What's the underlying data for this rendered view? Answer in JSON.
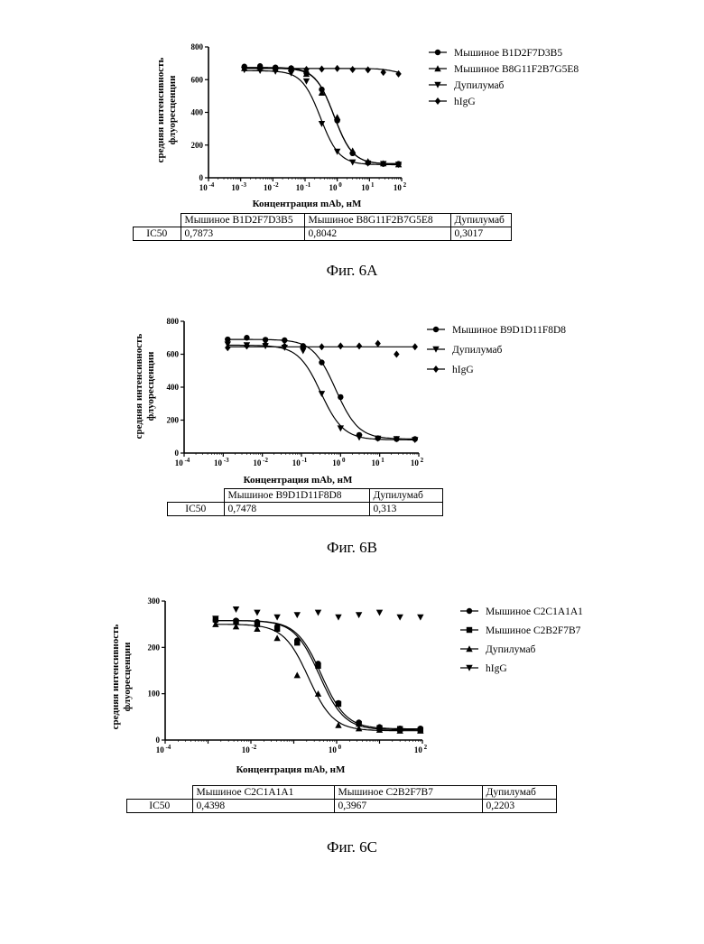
{
  "figures": [
    {
      "id": "6A",
      "caption": "Фиг. 6А",
      "ylabel_line1": "средняя интенсивность",
      "ylabel_line2": "флуоресценции",
      "xlabel": "Концентрация mAb, нМ",
      "ic50_table": {
        "row_label": "IC50",
        "columns": [
          "Мышиное B1D2F7D3B5",
          "Мышиное B8G11F2B7G5E8",
          "Дупилумаб"
        ],
        "values": [
          "0,7873",
          "0,8042",
          "0,3017"
        ]
      }
    },
    {
      "id": "6B",
      "caption": "Фиг. 6B",
      "ylabel_line1": "средняя интенсивность",
      "ylabel_line2": "флуоресценции",
      "xlabel": "Концентрация mAb, нМ",
      "ic50_table": {
        "row_label": "IC50",
        "columns": [
          "Мышиное B9D1D11F8D8",
          "Дупилумаб"
        ],
        "values": [
          "0,7478",
          "0,313"
        ]
      }
    },
    {
      "id": "6C",
      "caption": "Фиг. 6С",
      "ylabel_line1": "средняя интенсивность",
      "ylabel_line2": "флуоресценции",
      "xlabel": "Концентрация mAb, нМ",
      "ic50_table": {
        "row_label": "IC50",
        "columns": [
          "Мышиное C2C1A1A1",
          "Мышиное C2B2F7B7",
          "Дупилумаб"
        ],
        "values": [
          "0,4398",
          "0,3967",
          "0,2203"
        ]
      }
    }
  ],
  "chart_data": [
    {
      "type": "scatter",
      "title": "",
      "xlabel": "Концентрация mAb, нМ",
      "ylabel": "средняя интенсивность флуоресценции",
      "x_scale": "log",
      "xlim": [
        0.0001,
        100
      ],
      "ylim": [
        0,
        800
      ],
      "yticks": [
        0,
        200,
        400,
        600,
        800
      ],
      "x_ticks": [
        {
          "mant": "10",
          "exp": "-4",
          "value": 0.0001
        },
        {
          "mant": "10",
          "exp": "-3",
          "value": 0.001
        },
        {
          "mant": "10",
          "exp": "-2",
          "value": 0.01
        },
        {
          "mant": "10",
          "exp": "-1",
          "value": 0.1
        },
        {
          "mant": "10",
          "exp": "0",
          "value": 1
        },
        {
          "mant": "10",
          "exp": "1",
          "value": 10
        },
        {
          "mant": "10",
          "exp": "2",
          "value": 100
        }
      ],
      "legend_position": "right",
      "series": [
        {
          "name": "Мышиное B1D2F7D3B5",
          "marker": "circle",
          "x": [
            0.0013,
            0.004,
            0.012,
            0.037,
            0.11,
            0.33,
            1.0,
            3.0,
            9.0,
            27,
            80
          ],
          "y": [
            680,
            683,
            675,
            670,
            640,
            540,
            350,
            150,
            92,
            85,
            85
          ],
          "fit": {
            "top": 675,
            "bottom": 85,
            "ec50": 0.7873,
            "hill": 1.5
          }
        },
        {
          "name": "Мышиное B8G11F2B7G5E8",
          "marker": "triangle-up",
          "x": [
            0.0013,
            0.004,
            0.012,
            0.037,
            0.11,
            0.33,
            1.0,
            3.0,
            9.0,
            27,
            80
          ],
          "y": [
            670,
            678,
            665,
            668,
            635,
            520,
            370,
            165,
            100,
            88,
            82
          ],
          "fit": {
            "top": 670,
            "bottom": 85,
            "ec50": 0.8042,
            "hill": 1.5
          }
        },
        {
          "name": "Дупилумаб",
          "marker": "triangle-down",
          "x": [
            0.0013,
            0.004,
            0.012,
            0.037,
            0.11,
            0.33,
            1.0,
            3.0,
            9.0,
            27,
            80
          ],
          "y": [
            660,
            655,
            650,
            640,
            590,
            330,
            160,
            95,
            88,
            85,
            80
          ],
          "fit": {
            "top": 655,
            "bottom": 80,
            "ec50": 0.3017,
            "hill": 1.5
          }
        },
        {
          "name": "hIgG",
          "marker": "diamond",
          "x": [
            0.0013,
            0.004,
            0.012,
            0.037,
            0.11,
            0.33,
            1.0,
            3.0,
            9.0,
            27,
            80
          ],
          "y": [
            672,
            668,
            665,
            668,
            662,
            665,
            668,
            662,
            660,
            645,
            635
          ],
          "fit": {
            "top": 668,
            "bottom": 632,
            "ec50": 60,
            "hill": 2
          }
        }
      ]
    },
    {
      "type": "scatter",
      "title": "",
      "xlabel": "Концентрация mAb, нМ",
      "ylabel": "средняя интенсивность флуоресценции",
      "x_scale": "log",
      "xlim": [
        0.0001,
        100
      ],
      "ylim": [
        0,
        800
      ],
      "yticks": [
        0,
        200,
        400,
        600,
        800
      ],
      "x_ticks": [
        {
          "mant": "10",
          "exp": "-4",
          "value": 0.0001
        },
        {
          "mant": "10",
          "exp": "-3",
          "value": 0.001
        },
        {
          "mant": "10",
          "exp": "-2",
          "value": 0.01
        },
        {
          "mant": "10",
          "exp": "-1",
          "value": 0.1
        },
        {
          "mant": "10",
          "exp": "0",
          "value": 1
        },
        {
          "mant": "10",
          "exp": "1",
          "value": 10
        },
        {
          "mant": "10",
          "exp": "2",
          "value": 100
        }
      ],
      "legend_position": "right",
      "series": [
        {
          "name": "Мышиное B9D1D11F8D8",
          "marker": "circle",
          "x": [
            0.0013,
            0.004,
            0.012,
            0.037,
            0.11,
            0.33,
            1.0,
            3.0,
            9.0,
            27,
            80
          ],
          "y": [
            690,
            700,
            688,
            685,
            650,
            550,
            340,
            110,
            90,
            85,
            85
          ],
          "fit": {
            "top": 690,
            "bottom": 85,
            "ec50": 0.7478,
            "hill": 1.5
          }
        },
        {
          "name": "Дупилумаб",
          "marker": "triangle-down",
          "x": [
            0.0013,
            0.004,
            0.012,
            0.037,
            0.11,
            0.33,
            1.0,
            3.0,
            9.0,
            27,
            80
          ],
          "y": [
            660,
            655,
            650,
            640,
            620,
            360,
            150,
            95,
            88,
            85,
            80
          ],
          "fit": {
            "top": 655,
            "bottom": 80,
            "ec50": 0.313,
            "hill": 1.5
          }
        },
        {
          "name": "hIgG",
          "marker": "diamond",
          "x": [
            0.0013,
            0.004,
            0.012,
            0.037,
            0.11,
            0.33,
            1.0,
            3.0,
            9.0,
            27,
            80
          ],
          "y": [
            640,
            650,
            660,
            650,
            640,
            645,
            650,
            650,
            665,
            600,
            645
          ],
          "fit": {
            "top": 645,
            "bottom": 645,
            "ec50": 1,
            "hill": 1
          }
        }
      ]
    },
    {
      "type": "scatter",
      "title": "",
      "xlabel": "Концентрация mAb, нМ",
      "ylabel": "средняя интенсивность флуоресценции",
      "x_scale": "log",
      "xlim": [
        0.0001,
        100
      ],
      "ylim": [
        0,
        300
      ],
      "yticks": [
        0,
        100,
        200,
        300
      ],
      "x_ticks": [
        {
          "mant": "10",
          "exp": "-4",
          "value": 0.0001
        },
        {
          "mant": "10",
          "exp": "-2",
          "value": 0.01
        },
        {
          "mant": "10",
          "exp": "0",
          "value": 1
        },
        {
          "mant": "10",
          "exp": "2",
          "value": 100
        }
      ],
      "legend_position": "right",
      "series": [
        {
          "name": "Мышиное C2C1A1A1",
          "marker": "circle",
          "x": [
            0.0015,
            0.0045,
            0.014,
            0.041,
            0.12,
            0.37,
            1.1,
            3.3,
            10,
            30,
            90
          ],
          "y": [
            258,
            258,
            255,
            245,
            215,
            165,
            80,
            38,
            28,
            25,
            25
          ],
          "fit": {
            "top": 258,
            "bottom": 24,
            "ec50": 0.4398,
            "hill": 1.5
          }
        },
        {
          "name": "Мышиное C2B2F7B7",
          "marker": "square",
          "x": [
            0.0015,
            0.0045,
            0.014,
            0.041,
            0.12,
            0.37,
            1.1,
            3.3,
            10,
            30,
            90
          ],
          "y": [
            260,
            255,
            250,
            240,
            210,
            160,
            78,
            35,
            26,
            24,
            22
          ],
          "fit": {
            "top": 258,
            "bottom": 22,
            "ec50": 0.3967,
            "hill": 1.5
          }
        },
        {
          "name": "Дупилумаб",
          "marker": "triangle-up",
          "x": [
            0.0015,
            0.0045,
            0.014,
            0.041,
            0.12,
            0.37,
            1.1,
            3.3,
            10,
            30,
            90
          ],
          "y": [
            250,
            245,
            240,
            220,
            140,
            100,
            32,
            25,
            22,
            20,
            20
          ],
          "fit": {
            "top": 250,
            "bottom": 20,
            "ec50": 0.2203,
            "hill": 1.5
          }
        },
        {
          "name": "hIgG",
          "marker": "triangle-down",
          "x": [
            0.0015,
            0.0045,
            0.014,
            0.041,
            0.12,
            0.37,
            1.1,
            3.3,
            10,
            30,
            90
          ],
          "y": [
            262,
            282,
            275,
            265,
            270,
            275,
            265,
            270,
            275,
            265,
            265
          ]
        }
      ]
    }
  ]
}
